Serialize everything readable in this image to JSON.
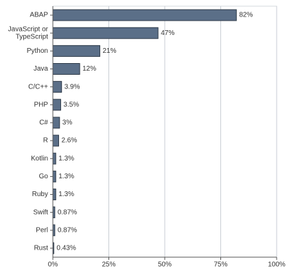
{
  "chart_data": {
    "type": "barh",
    "categories": [
      "ABAP",
      "JavaScript or\nTypeScript",
      "Python",
      "Java",
      "C/C++",
      "PHP",
      "C#",
      "R",
      "Kotlin",
      "Go",
      "Ruby",
      "Swift",
      "Perl",
      "Rust"
    ],
    "values": [
      82,
      47,
      21,
      12,
      3.9,
      3.5,
      3,
      2.6,
      1.3,
      1.3,
      1.3,
      0.87,
      0.87,
      0.43
    ],
    "value_labels": [
      "82%",
      "47%",
      "21%",
      "12%",
      "3.9%",
      "3.5%",
      "3%",
      "2.6%",
      "1.3%",
      "1.3%",
      "1.3%",
      "0.87%",
      "0.87%",
      "0.43%"
    ],
    "color": "#5b6f88",
    "xlim": [
      0,
      100
    ],
    "xticks": [
      {
        "value": 0,
        "label": "0%"
      },
      {
        "value": 25,
        "label": "25%"
      },
      {
        "value": 50,
        "label": "50%"
      },
      {
        "value": 75,
        "label": "75%"
      },
      {
        "value": 100,
        "label": "100%"
      }
    ],
    "grid": true
  }
}
